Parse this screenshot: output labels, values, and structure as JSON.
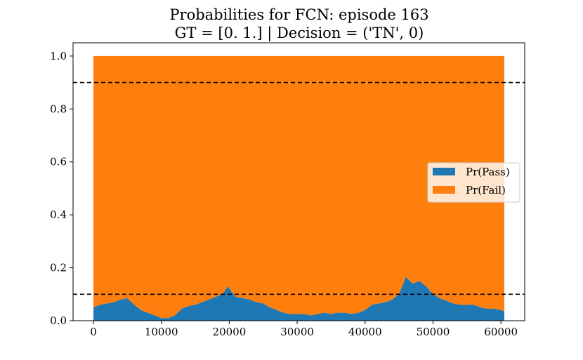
{
  "chart_data": {
    "type": "area",
    "stacked": true,
    "title": "Probabilities for FCN: episode 163",
    "subtitle": "GT = [0. 1.] | Decision = ('TN', 0)",
    "xlabel": "",
    "ylabel": "",
    "xlim": [
      -3000,
      63500
    ],
    "ylim": [
      0,
      1.05
    ],
    "xticks": [
      0,
      10000,
      20000,
      30000,
      40000,
      50000,
      60000
    ],
    "xtick_labels": [
      "0",
      "10000",
      "20000",
      "30000",
      "40000",
      "50000",
      "60000"
    ],
    "yticks": [
      0,
      0.2,
      0.4,
      0.6,
      0.8,
      1.0
    ],
    "ytick_labels": [
      "0.0",
      "0.2",
      "0.4",
      "0.6",
      "0.8",
      "1.0"
    ],
    "grid": false,
    "legend_position": "center-right",
    "thresholds": [
      0.9,
      0.1
    ],
    "series": [
      {
        "name": "Pr(Pass)",
        "color": "#1f77b4",
        "x": [
          0,
          1000,
          2000,
          3000,
          4000,
          5000,
          6000,
          7000,
          8000,
          9000,
          10000,
          11000,
          12000,
          13000,
          14000,
          15000,
          16000,
          17000,
          18000,
          19000,
          19800,
          20300,
          21000,
          22000,
          23000,
          24000,
          25000,
          26000,
          27000,
          28000,
          29000,
          30000,
          31000,
          32000,
          33000,
          34000,
          35000,
          36000,
          37000,
          38000,
          39000,
          40000,
          41000,
          42000,
          43000,
          44000,
          45000,
          46000,
          47000,
          48000,
          49000,
          50000,
          51000,
          52000,
          53000,
          54000,
          55000,
          56000,
          57000,
          58000,
          59000,
          60000,
          60500
        ],
        "values": [
          0.05,
          0.06,
          0.065,
          0.07,
          0.08,
          0.085,
          0.06,
          0.04,
          0.03,
          0.02,
          0.01,
          0.01,
          0.02,
          0.045,
          0.055,
          0.06,
          0.07,
          0.08,
          0.09,
          0.1,
          0.13,
          0.11,
          0.09,
          0.085,
          0.08,
          0.07,
          0.065,
          0.05,
          0.04,
          0.03,
          0.025,
          0.025,
          0.025,
          0.02,
          0.025,
          0.03,
          0.025,
          0.03,
          0.03,
          0.025,
          0.03,
          0.04,
          0.06,
          0.065,
          0.07,
          0.08,
          0.1,
          0.165,
          0.14,
          0.15,
          0.13,
          0.1,
          0.085,
          0.075,
          0.065,
          0.06,
          0.06,
          0.06,
          0.05,
          0.045,
          0.045,
          0.04,
          0.035
        ]
      },
      {
        "name": "Pr(Fail)",
        "color": "#ff7f0e",
        "x": [
          0,
          60500
        ],
        "values_note": "",
        "values": [
          0.95,
          0.965
        ]
      }
    ]
  }
}
